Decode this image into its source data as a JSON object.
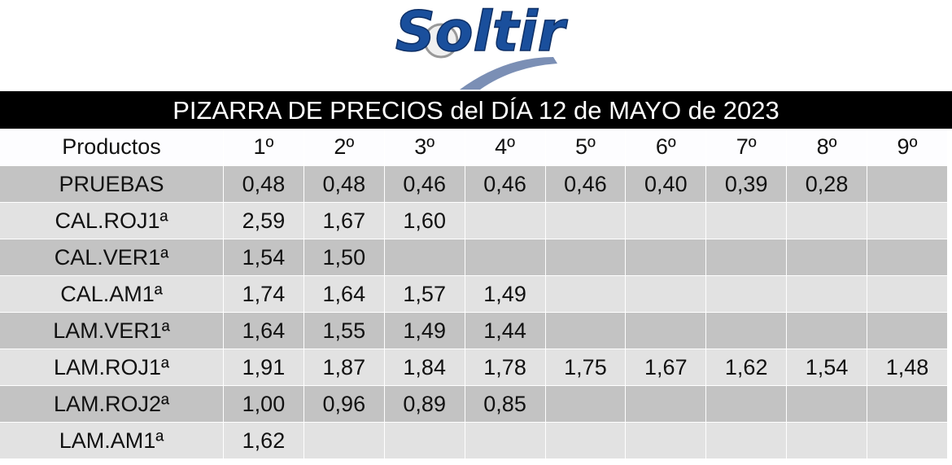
{
  "logo": "Soltir",
  "title": "PIZARRA DE PRECIOS del DÍA 12 de MAYO de 2023",
  "table": {
    "header": [
      "Productos",
      "1º",
      "2º",
      "3º",
      "4º",
      "5º",
      "6º",
      "7º",
      "8º",
      "9º"
    ],
    "rows": [
      {
        "product": "PRUEBAS",
        "prices": [
          "0,48",
          "0,48",
          "0,46",
          "0,46",
          "0,46",
          "0,40",
          "0,39",
          "0,28"
        ]
      },
      {
        "product": "CAL.ROJ1ª",
        "prices": [
          "2,59",
          "1,67",
          "1,60"
        ]
      },
      {
        "product": "CAL.VER1ª",
        "prices": [
          "1,54",
          "1,50"
        ]
      },
      {
        "product": "CAL.AM1ª",
        "prices": [
          "1,74",
          "1,64",
          "1,57",
          "1,49"
        ]
      },
      {
        "product": "LAM.VER1ª",
        "prices": [
          "1,64",
          "1,55",
          "1,49",
          "1,44"
        ]
      },
      {
        "product": "LAM.ROJ1ª",
        "prices": [
          "1,91",
          "1,87",
          "1,84",
          "1,78",
          "1,75",
          "1,67",
          "1,62",
          "1,54",
          "1,48"
        ]
      },
      {
        "product": "LAM.ROJ2ª",
        "prices": [
          "1,00",
          "0,96",
          "0,89",
          "0,85"
        ]
      },
      {
        "product": "LAM.AM1ª",
        "prices": [
          "1,62"
        ]
      }
    ]
  }
}
